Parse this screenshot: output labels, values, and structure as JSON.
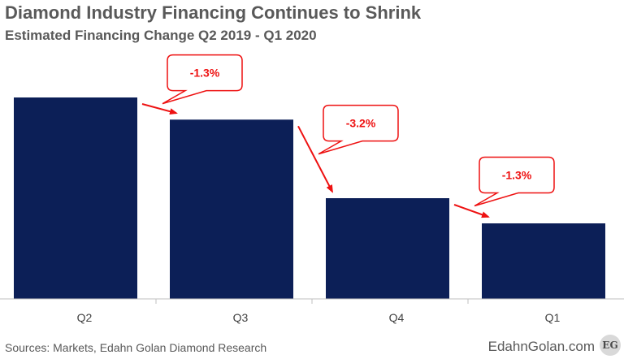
{
  "chart_data": {
    "type": "bar",
    "title": "Diamond Industry Financing Continues to Shrink",
    "subtitle": "Estimated Financing Change Q2 2019 - Q1 2020",
    "categories": [
      "Q2",
      "Q3",
      "Q4",
      "Q1"
    ],
    "values": [
      100,
      89,
      50,
      37.5
    ],
    "ylim": [
      0,
      100
    ],
    "xlabel": "",
    "ylabel": "",
    "grid": false,
    "legend": "none",
    "annotations": [
      {
        "label": "-1.3%",
        "from": "Q2",
        "to": "Q3"
      },
      {
        "label": "-3.2%",
        "from": "Q3",
        "to": "Q4"
      },
      {
        "label": "-1.3%",
        "from": "Q4",
        "to": "Q1"
      }
    ],
    "bar_color": "#0c1f57",
    "arrow_color": "#ee1111"
  },
  "footer": {
    "source": "Sources: Markets, Edahn Golan Diamond Research",
    "brand": "EdahnGolan.com",
    "logo_text": "EG"
  }
}
